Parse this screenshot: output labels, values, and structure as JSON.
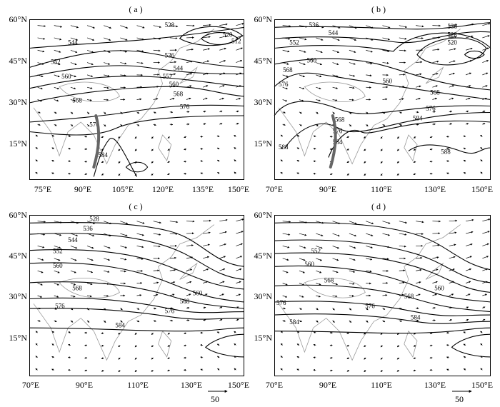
{
  "panels": [
    {
      "id": "a",
      "title": "( a )",
      "lon_ticks": [
        "75°E",
        "90°E",
        "105°E",
        "120°E",
        "135°E",
        "150°E"
      ],
      "lon_range": [
        70,
        150
      ],
      "lat_ticks": [
        "60°N",
        "45°N",
        "30°N",
        "15°N"
      ],
      "contour_labels": [
        "528",
        "520",
        "512",
        "536",
        "544",
        "544",
        "552",
        "552",
        "560",
        "560",
        "568",
        "568",
        "576",
        "576",
        "584"
      ],
      "has_trough_marker": true
    },
    {
      "id": "b",
      "title": "( b )",
      "lon_ticks": [
        "70°E",
        "90°E",
        "110°E",
        "130°E",
        "150°E"
      ],
      "lon_range": [
        70,
        150
      ],
      "lat_ticks": [
        "60°N",
        "45°N",
        "30°N",
        "15°N"
      ],
      "contour_labels": [
        "536",
        "544",
        "536",
        "528",
        "520",
        "552",
        "560",
        "568",
        "576",
        "560",
        "568",
        "576",
        "568",
        "576",
        "584",
        "584",
        "588",
        "588"
      ],
      "has_trough_marker": true
    },
    {
      "id": "c",
      "title": "( c )",
      "lon_ticks": [
        "70°E",
        "90°E",
        "110°E",
        "130°E",
        "150°E"
      ],
      "lon_range": [
        70,
        150
      ],
      "lat_ticks": [
        "60°N",
        "45°N",
        "30°N",
        "15°N"
      ],
      "contour_labels": [
        "528",
        "536",
        "544",
        "552",
        "560",
        "568",
        "576",
        "560",
        "568",
        "576",
        "584"
      ],
      "has_trough_marker": false,
      "reference_vector": "50"
    },
    {
      "id": "d",
      "title": "( d )",
      "lon_ticks": [
        "70°E",
        "90°E",
        "110°E",
        "130°E",
        "150°E"
      ],
      "lon_range": [
        70,
        150
      ],
      "lat_ticks": [
        "60°N",
        "45°N",
        "30°N",
        "15°N"
      ],
      "contour_labels": [
        "552",
        "560",
        "568",
        "576",
        "560",
        "568",
        "576",
        "584",
        "584"
      ],
      "has_trough_marker": false,
      "reference_vector": "50"
    }
  ],
  "colors": {
    "contour": "#000000",
    "coast": "#9a9a9a",
    "vector": "#000000",
    "trough": "#666666"
  }
}
